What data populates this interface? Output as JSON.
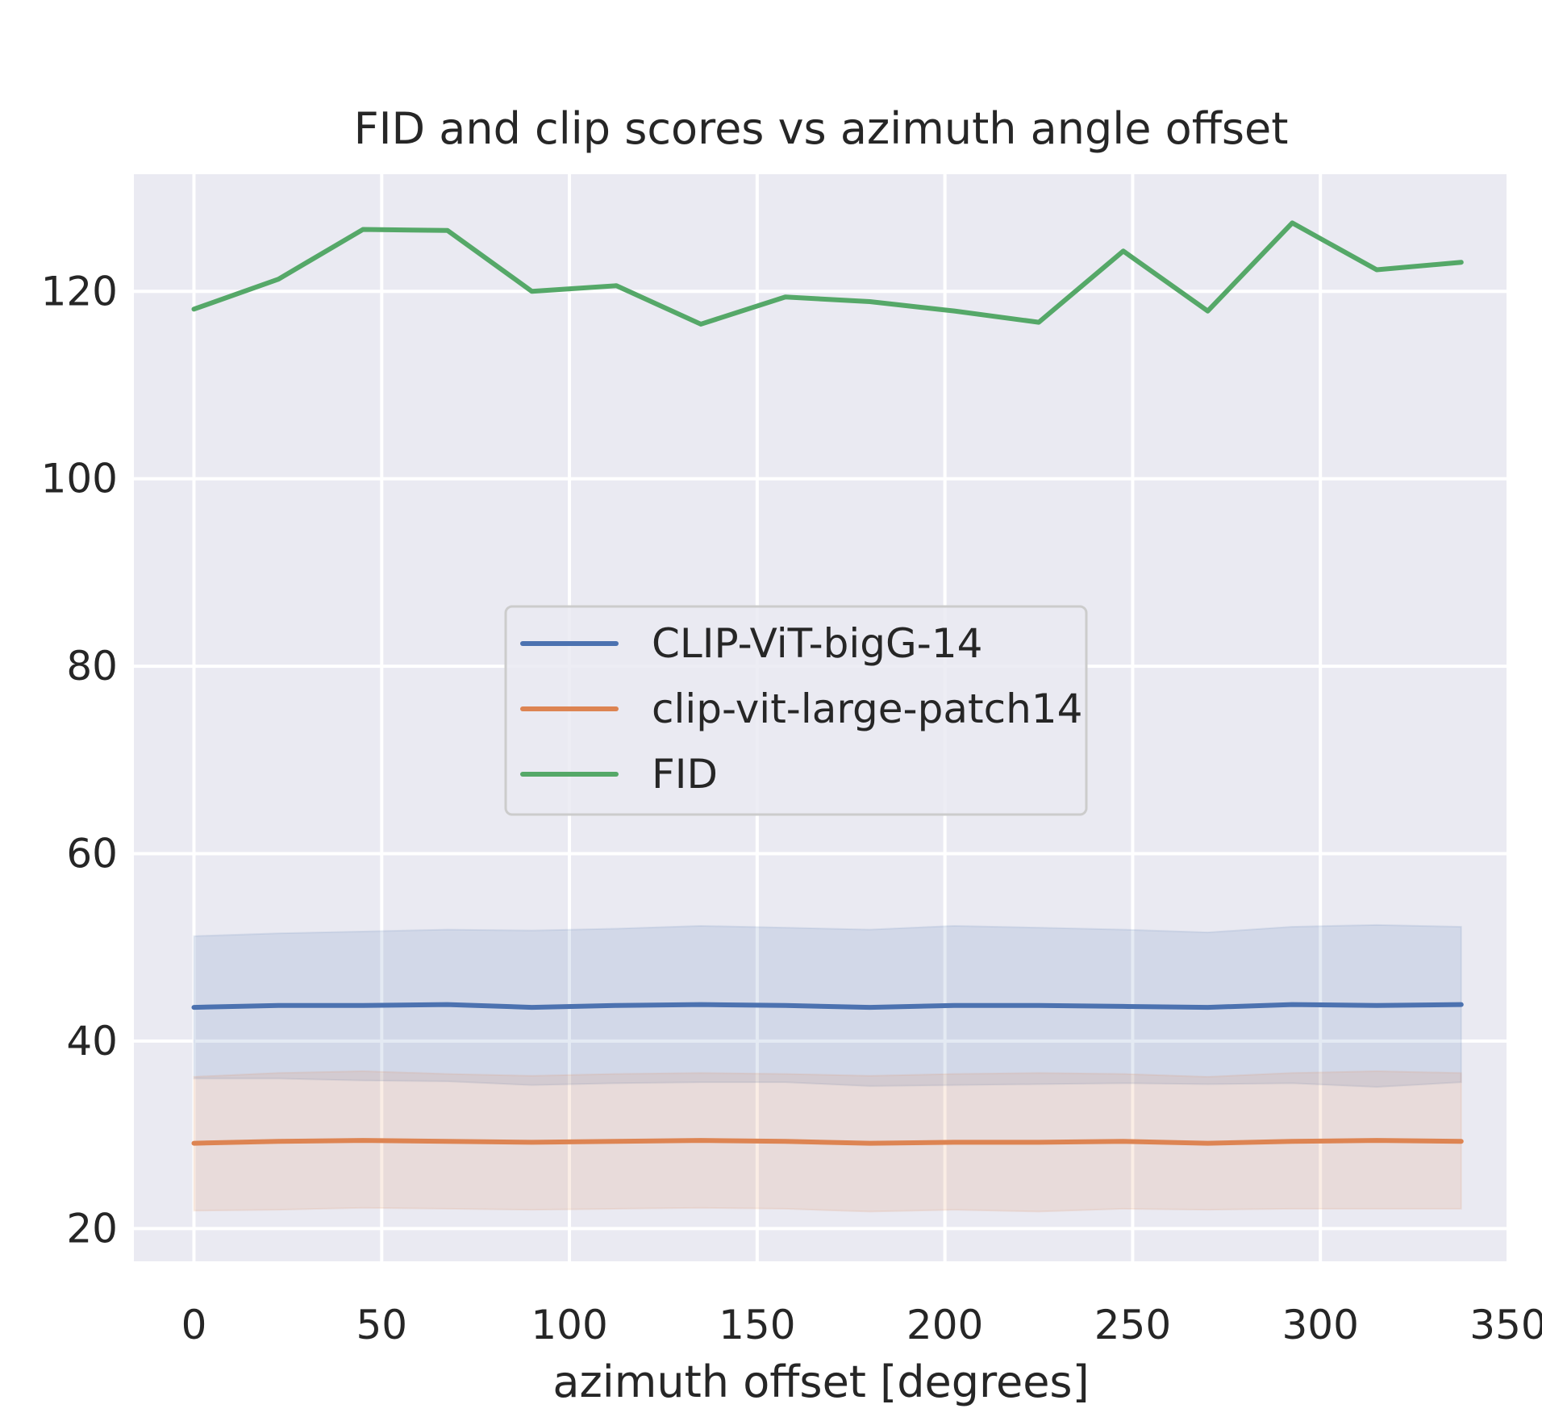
{
  "chart_data": {
    "type": "line",
    "title": "FID and clip scores vs azimuth angle offset",
    "xlabel": "azimuth offset [degrees]",
    "ylabel": "",
    "xlim": [
      -16,
      350
    ],
    "ylim": [
      16.5,
      132.5
    ],
    "xticks": [
      0,
      50,
      100,
      150,
      200,
      250,
      300,
      350
    ],
    "yticks": [
      20,
      40,
      60,
      80,
      100,
      120
    ],
    "grid": true,
    "legend_position": "center",
    "x": [
      0,
      22.5,
      45,
      67.5,
      90,
      112.5,
      135,
      157.5,
      180,
      202.5,
      225,
      247.5,
      270,
      292.5,
      315,
      337.5
    ],
    "series": [
      {
        "name": "CLIP-ViT-bigG-14",
        "color": "#4c72b0",
        "values": [
          43.6,
          43.8,
          43.8,
          43.9,
          43.6,
          43.8,
          43.9,
          43.8,
          43.6,
          43.8,
          43.8,
          43.7,
          43.6,
          43.9,
          43.8,
          43.9
        ],
        "band_upper": [
          51.2,
          51.5,
          51.7,
          51.9,
          51.8,
          52.0,
          52.3,
          52.1,
          51.9,
          52.3,
          52.1,
          51.9,
          51.6,
          52.2,
          52.4,
          52.2
        ],
        "band_lower": [
          36.0,
          36.0,
          35.8,
          35.7,
          35.3,
          35.5,
          35.6,
          35.6,
          35.2,
          35.3,
          35.4,
          35.5,
          35.4,
          35.5,
          35.1,
          35.6
        ]
      },
      {
        "name": "clip-vit-large-patch14",
        "color": "#dd8452",
        "values": [
          29.1,
          29.3,
          29.4,
          29.3,
          29.2,
          29.3,
          29.4,
          29.3,
          29.1,
          29.2,
          29.2,
          29.3,
          29.1,
          29.3,
          29.4,
          29.3
        ],
        "band_upper": [
          36.2,
          36.6,
          36.8,
          36.5,
          36.3,
          36.5,
          36.6,
          36.5,
          36.3,
          36.5,
          36.6,
          36.5,
          36.2,
          36.6,
          36.8,
          36.6
        ],
        "band_lower": [
          21.9,
          22.0,
          22.2,
          22.1,
          22.0,
          22.1,
          22.2,
          22.1,
          21.8,
          22.0,
          21.8,
          22.1,
          22.0,
          22.1,
          22.1,
          22.1
        ]
      },
      {
        "name": "FID",
        "color": "#55a868",
        "values": [
          118.1,
          121.3,
          126.6,
          126.5,
          120.0,
          120.6,
          116.5,
          119.4,
          118.9,
          117.9,
          116.7,
          124.3,
          117.9,
          127.3,
          122.3,
          123.1
        ]
      }
    ]
  }
}
